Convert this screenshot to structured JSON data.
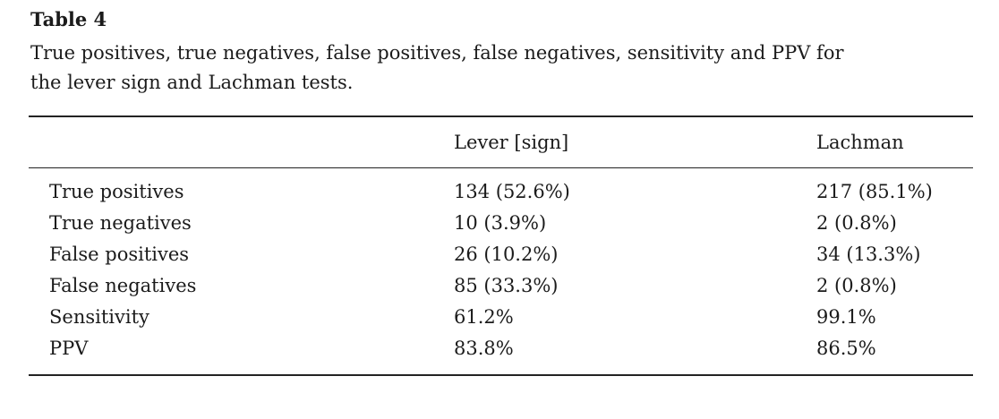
{
  "colors": {
    "background": "#ffffff",
    "text": "#1b1b1b",
    "rule": "#232323"
  },
  "table_label": "Table 4",
  "caption": {
    "line1": "True positives, true negatives, false positives, false negatives, sensitivity and PPV for",
    "line2": "the lever sign and Lachman tests."
  },
  "table": {
    "column_headers": [
      "",
      "Lever [sign]",
      "Lachman"
    ],
    "rows": [
      {
        "label": "True positives",
        "lever": "134 (52.6%)",
        "lachman": "217 (85.1%)"
      },
      {
        "label": "True negatives",
        "lever": "10 (3.9%)",
        "lachman": "2 (0.8%)"
      },
      {
        "label": "False positives",
        "lever": "26 (10.2%)",
        "lachman": "34 (13.3%)"
      },
      {
        "label": "False negatives",
        "lever": "85 (33.3%)",
        "lachman": "2 (0.8%)"
      },
      {
        "label": "Sensitivity",
        "lever": "61.2%",
        "lachman": "99.1%"
      },
      {
        "label": "PPV",
        "lever": "83.8%",
        "lachman": "86.5%"
      }
    ]
  }
}
